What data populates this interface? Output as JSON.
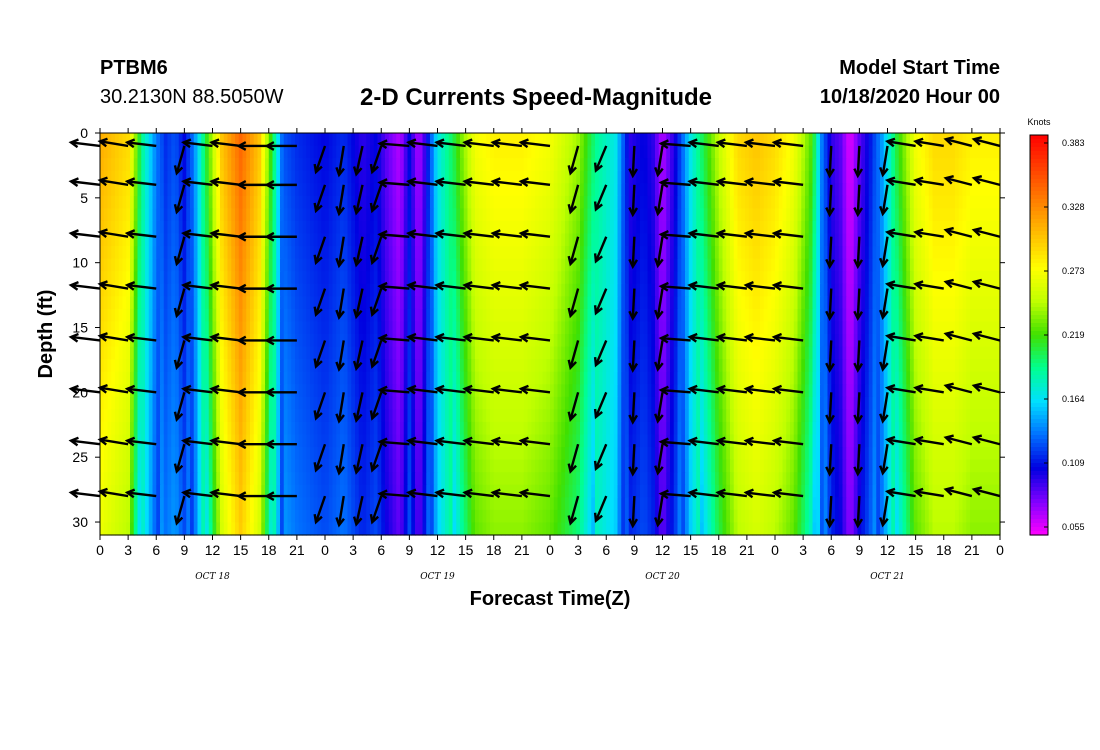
{
  "header": {
    "station": "PTBM6",
    "coordinates": "30.2130N 88.5050W",
    "title": "2-D Currents Speed-Magnitude",
    "model_start_label": "Model Start Time",
    "model_start_value": "10/18/2020 Hour 00"
  },
  "colors": {
    "scale": [
      "#ff00ff",
      "#8000ff",
      "#0000e0",
      "#0070ff",
      "#00e0ff",
      "#00ff90",
      "#40e000",
      "#c0ff00",
      "#ffff00",
      "#ffc000",
      "#ff8000",
      "#ff4000",
      "#ff0000"
    ],
    "arrow": "#000000",
    "axis": "#000000"
  },
  "chart_data": {
    "type": "heatmap",
    "title": "2-D Currents Speed-Magnitude",
    "xlabel": "Forecast Time(Z)",
    "ylabel": "Depth (ft)",
    "x_ticks": [
      "0",
      "3",
      "6",
      "9",
      "12",
      "15",
      "18",
      "21",
      "0",
      "3",
      "6",
      "9",
      "12",
      "15",
      "18",
      "21",
      "0",
      "3",
      "6",
      "9",
      "12",
      "15",
      "18",
      "21",
      "0",
      "3",
      "6",
      "9",
      "12",
      "15",
      "18",
      "21",
      "0"
    ],
    "x_range_hours": [
      0,
      96
    ],
    "day_labels": [
      {
        "label": "OCT 18",
        "hour": 12
      },
      {
        "label": "OCT 19",
        "hour": 36
      },
      {
        "label": "OCT 20",
        "hour": 60
      },
      {
        "label": "OCT 21",
        "hour": 84
      }
    ],
    "y_ticks": [
      "0",
      "5",
      "10",
      "15",
      "20",
      "25",
      "30"
    ],
    "y_range_ft": [
      0,
      31
    ],
    "y_inverted": true,
    "colorbar": {
      "title": "Knots",
      "ticks": [
        "0.383",
        "0.328",
        "0.273",
        "0.219",
        "0.164",
        "0.109",
        "0.055"
      ],
      "min": 0.055,
      "max": 0.383
    },
    "speed_profile_hours": [
      0,
      3,
      4.5,
      6,
      7,
      8,
      9,
      10,
      11.5,
      13,
      15,
      17,
      18.5,
      19.5,
      21,
      24,
      26,
      28,
      29.5,
      30.5,
      32,
      33,
      34,
      34.7,
      36,
      37.5,
      38.5,
      40,
      42,
      45,
      48,
      51,
      53,
      55,
      56.5,
      58,
      59,
      60,
      61.5,
      63,
      64.5,
      66,
      68,
      70,
      72,
      74,
      76,
      77,
      78,
      79,
      80,
      81,
      82,
      83.5,
      85,
      87,
      89,
      91,
      93,
      96
    ],
    "speed_profile_knots": [
      0.31,
      0.29,
      0.19,
      0.14,
      0.12,
      0.13,
      0.11,
      0.14,
      0.22,
      0.3,
      0.34,
      0.3,
      0.2,
      0.13,
      0.12,
      0.11,
      0.12,
      0.1,
      0.11,
      0.09,
      0.07,
      0.11,
      0.07,
      0.1,
      0.17,
      0.2,
      0.23,
      0.27,
      0.28,
      0.28,
      0.27,
      0.24,
      0.19,
      0.17,
      0.1,
      0.11,
      0.1,
      0.07,
      0.11,
      0.17,
      0.21,
      0.25,
      0.29,
      0.3,
      0.29,
      0.27,
      0.22,
      0.14,
      0.1,
      0.09,
      0.06,
      0.09,
      0.11,
      0.15,
      0.21,
      0.27,
      0.29,
      0.29,
      0.28,
      0.28
    ],
    "vector_depths_ft": [
      1,
      4,
      8,
      12,
      16,
      20,
      24,
      28
    ],
    "vector_hours": [
      0,
      3,
      6,
      9,
      12,
      15,
      18,
      21,
      24,
      26,
      28,
      30,
      33,
      36,
      39,
      42,
      45,
      48,
      51,
      54,
      57,
      60,
      63,
      66,
      69,
      72,
      75,
      78,
      81,
      84,
      87,
      90,
      93,
      96
    ],
    "vector_directions_deg": [
      345,
      340,
      345,
      25,
      345,
      345,
      0,
      0,
      30,
      15,
      20,
      30,
      350,
      345,
      345,
      345,
      345,
      345,
      25,
      35,
      5,
      15,
      350,
      345,
      345,
      345,
      345,
      5,
      5,
      15,
      340,
      340,
      330,
      330
    ]
  }
}
